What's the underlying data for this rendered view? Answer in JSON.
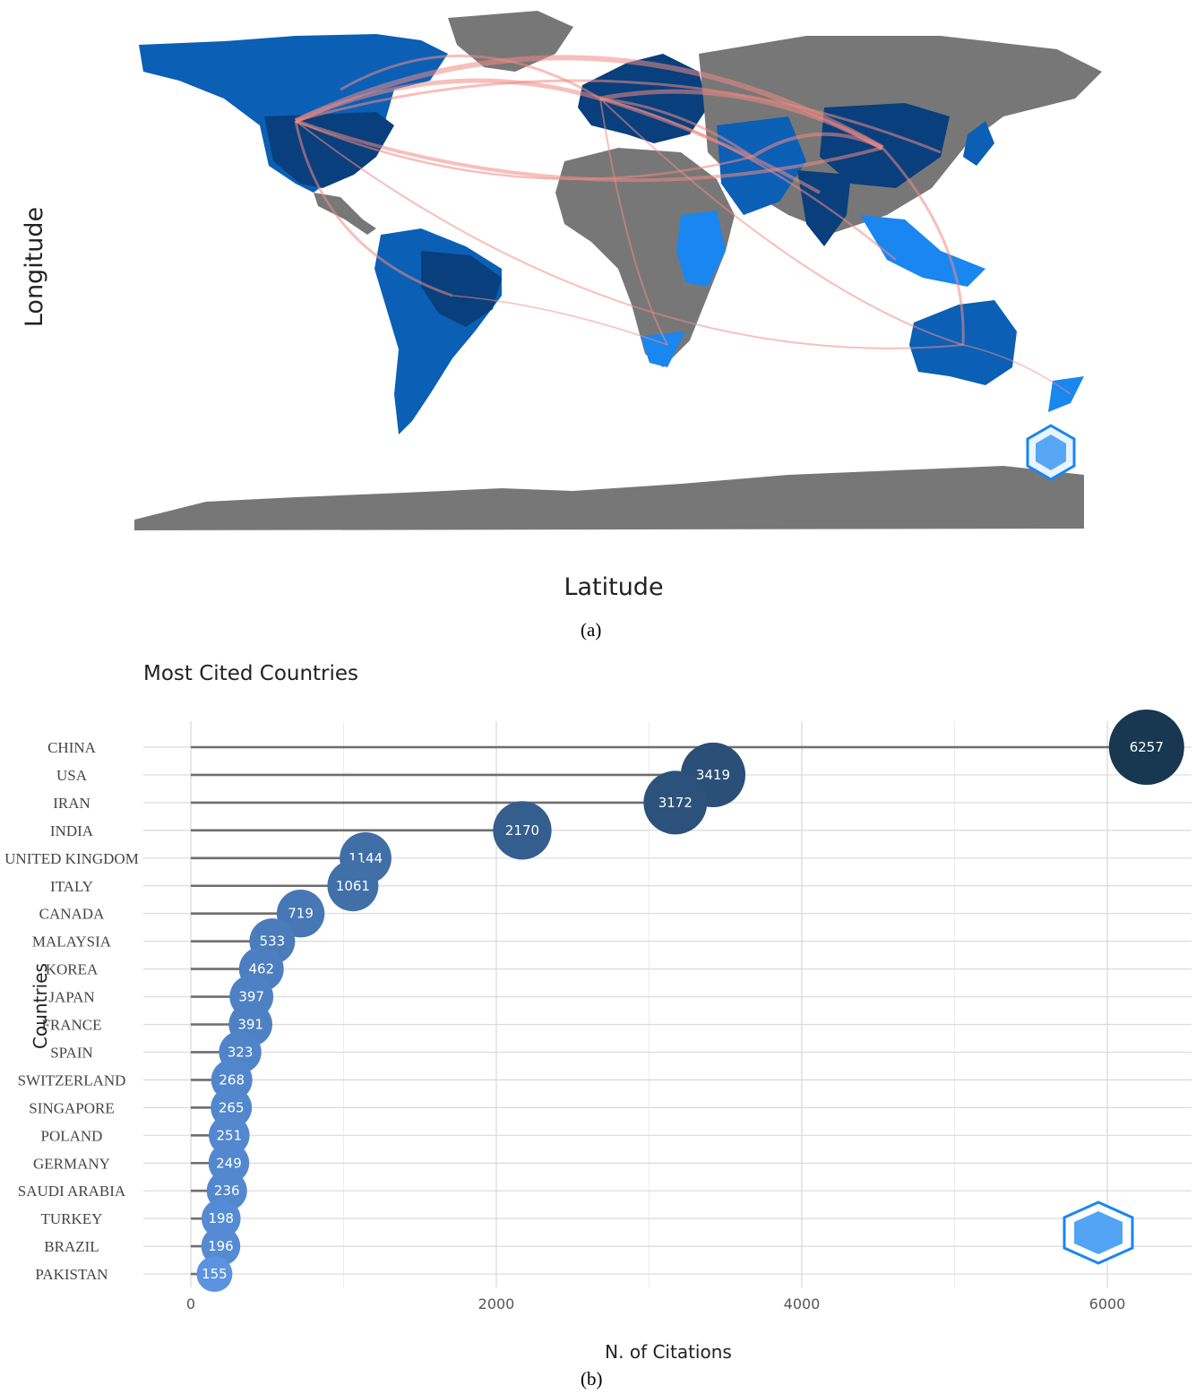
{
  "figure_a": {
    "xlabel": "Latitude",
    "ylabel": "Longitude",
    "caption": "(a)",
    "colors": {
      "ocean": "#ffffff",
      "no_data": "#777777",
      "light": "#1a86f0",
      "mid": "#0b5fb5",
      "dark": "#083f7c",
      "links": "#f08a84"
    },
    "logo_icon": "bibliometrix-hex-logo-icon"
  },
  "chart_data": {
    "type": "scatter",
    "title": "Most Cited Countries",
    "xlabel": "N. of Citations",
    "ylabel": "Countries",
    "xlim": [
      0,
      6257
    ],
    "xticks": [
      0,
      2000,
      4000,
      6000
    ],
    "grid": true,
    "categories": [
      "CHINA",
      "USA",
      "IRAN",
      "INDIA",
      "UNITED KINGDOM",
      "ITALY",
      "CANADA",
      "MALAYSIA",
      "KOREA",
      "JAPAN",
      "FRANCE",
      "SPAIN",
      "SWITZERLAND",
      "SINGAPORE",
      "POLAND",
      "GERMANY",
      "SAUDI ARABIA",
      "TURKEY",
      "BRAZIL",
      "PAKISTAN"
    ],
    "values": [
      6257,
      3419,
      3172,
      2170,
      1144,
      1061,
      719,
      533,
      462,
      397,
      391,
      323,
      268,
      265,
      251,
      249,
      236,
      198,
      196,
      155
    ],
    "colors": {
      "low": "#5b93e0",
      "high": "#183750",
      "stem": "#6e6e6e"
    }
  },
  "figure_b": {
    "caption": "(b)",
    "logo_icon": "bibliometrix-hex-logo-icon"
  }
}
